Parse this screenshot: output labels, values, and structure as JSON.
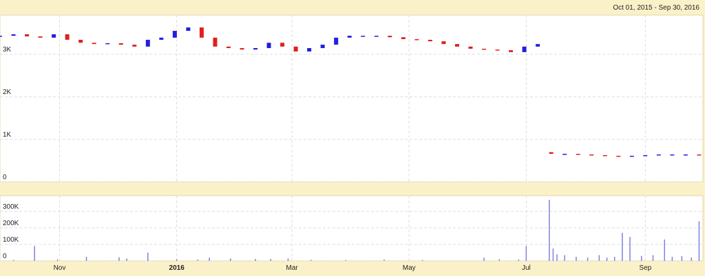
{
  "chart_data": [
    {
      "type": "candlestick",
      "title": "Oct 01, 2015 - Sep 30, 2016",
      "x": [
        0,
        7,
        14,
        21,
        28,
        35,
        42,
        49,
        56,
        63,
        70,
        77,
        84,
        91,
        98,
        105,
        112,
        119,
        126,
        133,
        140,
        147,
        154,
        161,
        168,
        175,
        182,
        189,
        196,
        203,
        210,
        217,
        224,
        231,
        238,
        245,
        252,
        259,
        266,
        273,
        280,
        287,
        294,
        301,
        308,
        315,
        322,
        329,
        336,
        343,
        350,
        357,
        364
      ],
      "open": [
        3420,
        3435,
        3470,
        3420,
        3390,
        3470,
        3340,
        3270,
        3240,
        3260,
        3225,
        3180,
        3340,
        3390,
        3550,
        3630,
        3390,
        3180,
        3145,
        3110,
        3145,
        3270,
        3180,
        3065,
        3145,
        3225,
        3390,
        3435,
        3435,
        3435,
        3400,
        3355,
        3340,
        3305,
        3240,
        3180,
        3130,
        3110,
        3095,
        3050,
        3180,
        700,
        660,
        660,
        645,
        630,
        615,
        600,
        615,
        630,
        645,
        645,
        645
      ],
      "close": [
        3435,
        3470,
        3420,
        3390,
        3470,
        3340,
        3270,
        3240,
        3260,
        3225,
        3180,
        3340,
        3390,
        3550,
        3630,
        3390,
        3180,
        3145,
        3110,
        3145,
        3270,
        3180,
        3065,
        3145,
        3225,
        3390,
        3435,
        3435,
        3435,
        3400,
        3355,
        3340,
        3305,
        3240,
        3180,
        3130,
        3110,
        3095,
        3050,
        3180,
        3240,
        660,
        660,
        645,
        630,
        615,
        600,
        615,
        630,
        645,
        645,
        645,
        630
      ],
      "up_color": "#2020e0",
      "down_color": "#e02020",
      "xlim": [
        0,
        366
      ],
      "xticks": [
        {
          "value": 31,
          "label": "Nov"
        },
        {
          "value": 92,
          "label": "2016"
        },
        {
          "value": 152,
          "label": "Mar"
        },
        {
          "value": 213,
          "label": "May"
        },
        {
          "value": 274,
          "label": "Jul"
        },
        {
          "value": 336,
          "label": "Sep"
        }
      ],
      "ylim": [
        0,
        3920
      ],
      "yticks": [
        0,
        {
          "value": 1000,
          "label": "1K"
        },
        {
          "value": 2000,
          "label": "2K"
        },
        {
          "value": 3000,
          "label": "3K"
        }
      ],
      "grid": true
    },
    {
      "type": "bar",
      "x": [
        7,
        18,
        30,
        45,
        62,
        66,
        77,
        92,
        103,
        109,
        120,
        133,
        141,
        150,
        162,
        180,
        200,
        220,
        252,
        260,
        270,
        274,
        286,
        288,
        290,
        294,
        300,
        306,
        312,
        316,
        320,
        324,
        328,
        334,
        340,
        346,
        350,
        355,
        360,
        364
      ],
      "values": [
        5000,
        90000,
        8000,
        25000,
        22000,
        15000,
        50000,
        10000,
        8000,
        20000,
        15000,
        12000,
        12000,
        15000,
        6000,
        5000,
        8000,
        5000,
        20000,
        10000,
        8000,
        90000,
        370000,
        75000,
        40000,
        35000,
        25000,
        20000,
        35000,
        20000,
        25000,
        170000,
        145000,
        30000,
        35000,
        130000,
        25000,
        30000,
        20000,
        240000
      ],
      "color": "#8080e0",
      "xlim": [
        0,
        366
      ],
      "xticks": [
        {
          "value": 31,
          "label": "Nov"
        },
        {
          "value": 92,
          "label": "2016"
        },
        {
          "value": 152,
          "label": "Mar"
        },
        {
          "value": 213,
          "label": "May"
        },
        {
          "value": 274,
          "label": "Jul"
        },
        {
          "value": 336,
          "label": "Sep"
        }
      ],
      "ylim": [
        0,
        395000
      ],
      "yticks": [
        0,
        {
          "value": 100000,
          "label": "100K"
        },
        {
          "value": 200000,
          "label": "200K"
        },
        {
          "value": 300000,
          "label": "300K"
        }
      ],
      "grid": true
    }
  ]
}
